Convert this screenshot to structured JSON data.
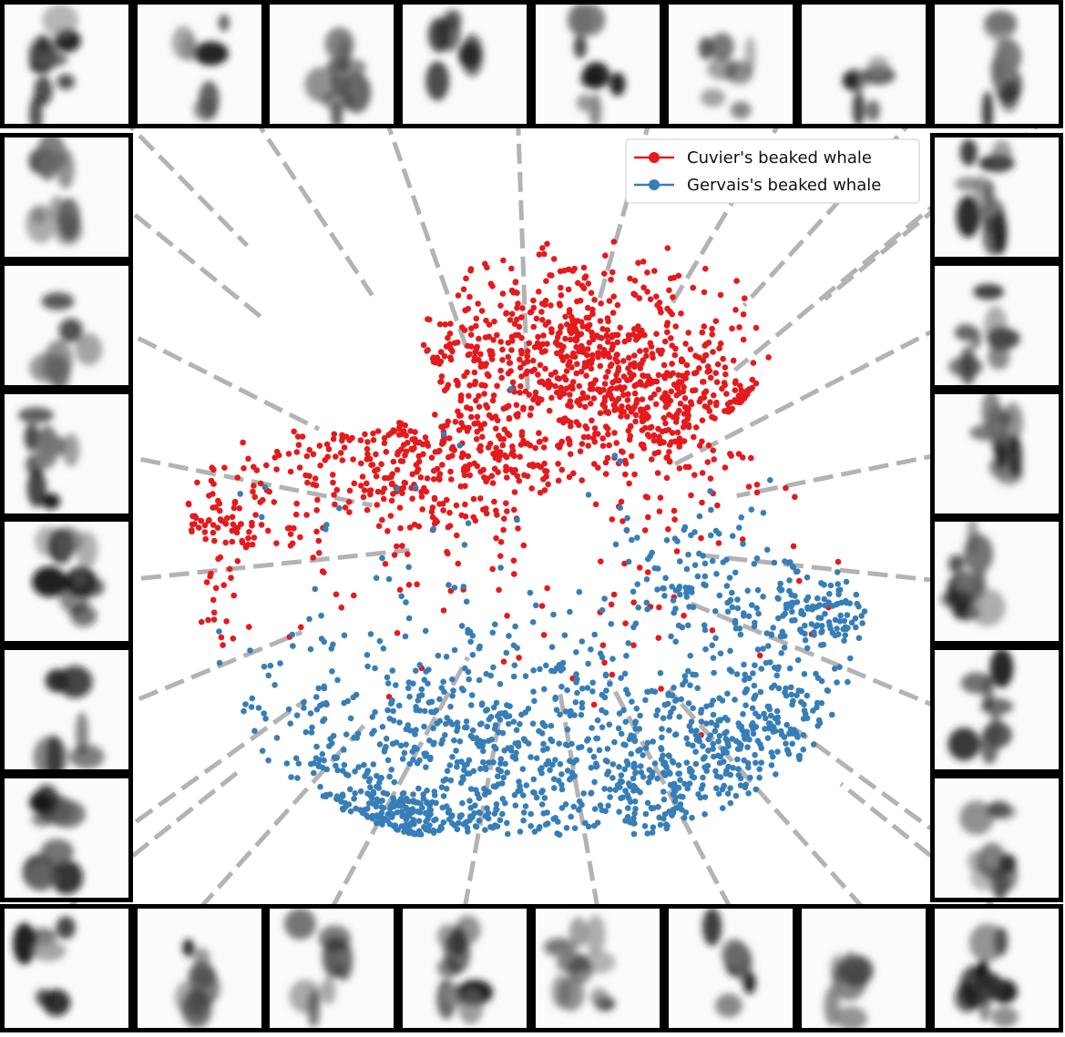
{
  "colors": {
    "cuvier": "#e41a1c",
    "gervais": "#377eb8",
    "connector": "#b3b3b3",
    "frame": "#000000",
    "background": "#ffffff"
  },
  "chart_data": {
    "type": "scatter",
    "title": "",
    "xlabel": "",
    "ylabel": "",
    "axes_visible": false,
    "grid": false,
    "legend_position": "top-right",
    "series": [
      {
        "name": "Cuvier's beaked whale",
        "color": "#e41a1c",
        "approx_point_count": 1500,
        "regions": [
          {
            "cx": 0.38,
            "cy": 0.6,
            "sx": 0.11,
            "sy": 0.07,
            "weight": 0.3
          },
          {
            "cx": 0.56,
            "cy": 0.73,
            "sx": 0.12,
            "sy": 0.06,
            "weight": 0.32
          },
          {
            "cx": 0.67,
            "cy": 0.64,
            "sx": 0.08,
            "sy": 0.05,
            "weight": 0.18
          },
          {
            "cx": 0.8,
            "cy": 0.63,
            "sx": 0.02,
            "sy": 0.015,
            "weight": 0.05
          },
          {
            "cx": 0.12,
            "cy": 0.48,
            "sx": 0.06,
            "sy": 0.06,
            "weight": 0.08
          },
          {
            "cx": 0.52,
            "cy": 0.45,
            "sx": 0.2,
            "sy": 0.1,
            "weight": 0.07
          }
        ]
      },
      {
        "name": "Gervais's beaked whale",
        "color": "#377eb8",
        "approx_point_count": 1500,
        "regions": [
          {
            "cx": 0.46,
            "cy": 0.2,
            "sx": 0.2,
            "sy": 0.08,
            "weight": 0.45
          },
          {
            "cx": 0.3,
            "cy": 0.1,
            "sx": 0.08,
            "sy": 0.03,
            "weight": 0.12
          },
          {
            "cx": 0.66,
            "cy": 0.14,
            "sx": 0.08,
            "sy": 0.04,
            "weight": 0.1
          },
          {
            "cx": 0.78,
            "cy": 0.24,
            "sx": 0.07,
            "sy": 0.05,
            "weight": 0.13
          },
          {
            "cx": 0.86,
            "cy": 0.38,
            "sx": 0.04,
            "sy": 0.03,
            "weight": 0.08
          },
          {
            "cx": 0.72,
            "cy": 0.42,
            "sx": 0.06,
            "sy": 0.05,
            "weight": 0.07
          },
          {
            "cx": 0.4,
            "cy": 0.4,
            "sx": 0.25,
            "sy": 0.12,
            "weight": 0.05
          }
        ]
      }
    ]
  },
  "thumbnails": {
    "count": 28,
    "layout": "8 per side around the plot",
    "connectors": "gray dashed lines from each thumbnail toward a point in the scatter"
  }
}
